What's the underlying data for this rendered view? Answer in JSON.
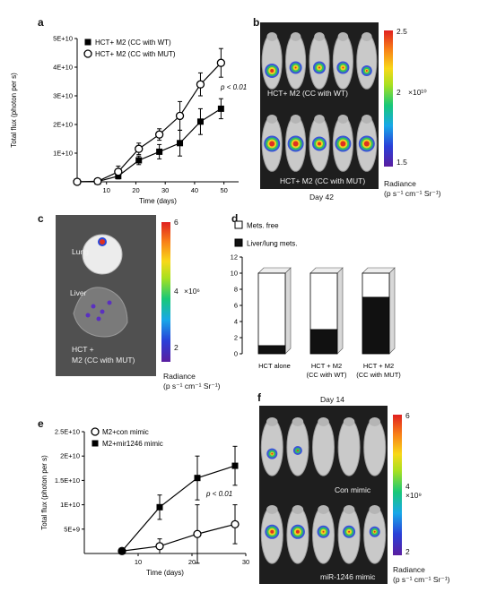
{
  "panels": {
    "a": {
      "letter": "a",
      "legend": [
        "HCT+ M2 (CC with WT)",
        "HCT+ M2 (CC with MUT)"
      ],
      "pvalue": "p < 0.01"
    },
    "b": {
      "letter": "b",
      "top_label": "HCT+ M2 (CC with WT)",
      "bottom_label": "HCT+ M2 (CC with MUT)",
      "day": "Day 42",
      "scale": {
        "max": "2.5",
        "mid": "2",
        "min": "1.5",
        "multiplier": "×10¹⁰",
        "title": "Radiance",
        "unit": "(p s⁻¹ cm⁻¹ Sr⁻¹)"
      }
    },
    "c": {
      "letter": "c",
      "lung": "Lung",
      "liver": "Liver",
      "sample": "HCT +",
      "sample2": "M2 (CC with MUT)",
      "scale": {
        "max": "6",
        "mid": "4",
        "min": "2",
        "multiplier": "×10⁶",
        "title": "Radiance",
        "unit": "(p s⁻¹ cm⁻¹ Sr⁻¹)"
      }
    },
    "d": {
      "letter": "d"
    },
    "e": {
      "letter": "e",
      "legend": [
        "M2+con mimic",
        "M2+mir1246 mimic"
      ],
      "pvalue": "p < 0.01"
    },
    "f": {
      "letter": "f",
      "day": "Day 14",
      "top_label": "Con mimic",
      "bottom_label": "miR-1246 mimic",
      "scale": {
        "max": "6",
        "mid": "4",
        "min": "2",
        "multiplier": "×10⁹",
        "title": "Radiance",
        "unit": "(p s⁻¹ cm⁻¹ Sr⁻¹)"
      }
    }
  },
  "chart_data": [
    {
      "id": "a",
      "type": "line",
      "ylabel": "Total flux (photon per s)",
      "xlabel": "Time (days)",
      "xlim": [
        0,
        55
      ],
      "ylim": [
        0,
        50000000000
      ],
      "x_ticks": [
        "10",
        "20",
        "30",
        "40",
        "50"
      ],
      "y_ticks": [
        "1E+10",
        "2E+10",
        "3E+10",
        "4E+10",
        "5E+10"
      ],
      "series": [
        {
          "name": "HCT+ M2 (CC with WT)",
          "marker": "filled-square",
          "x": [
            0,
            7,
            14,
            21,
            28,
            35,
            42,
            49
          ],
          "y": [
            0,
            100000000,
            2000000000,
            7500000000,
            10500000000,
            13500000000,
            21000000000,
            25500000000
          ],
          "err": [
            0,
            0,
            1000000000,
            1500000000,
            2500000000,
            4500000000,
            4500000000,
            3500000000
          ]
        },
        {
          "name": "HCT+ M2 (CC with MUT)",
          "marker": "open-circle",
          "x": [
            0,
            7,
            14,
            21,
            28,
            35,
            42,
            49
          ],
          "y": [
            0,
            200000000,
            3500000000,
            11500000000,
            16500000000,
            23000000000,
            34000000000,
            41500000000
          ],
          "err": [
            0,
            0,
            2000000000,
            2000000000,
            2000000000,
            5000000000,
            4000000000,
            5000000000
          ]
        }
      ]
    },
    {
      "id": "d",
      "type": "bar",
      "stacked": true,
      "categories": [
        "HCT alone",
        "HCT + M2\n(CC with WT)",
        "HCT + M2\n(CC with MUT)"
      ],
      "ylim": [
        0,
        12
      ],
      "y_ticks": [
        "0",
        "2",
        "4",
        "6",
        "8",
        "10",
        "12"
      ],
      "legend": [
        "Mets. free",
        "Liver/lung mets."
      ],
      "series": [
        {
          "name": "Liver/lung mets.",
          "color": "#111111",
          "values": [
            1,
            3,
            7
          ]
        },
        {
          "name": "Mets. free",
          "color": "#ffffff",
          "values": [
            9,
            7,
            3
          ]
        }
      ]
    },
    {
      "id": "e",
      "type": "line",
      "ylabel": "Total flux (photon per s)",
      "xlabel": "Time (days)",
      "xlim": [
        0,
        30
      ],
      "ylim": [
        0,
        25000000000
      ],
      "x_ticks": [
        "10",
        "20",
        "30"
      ],
      "y_ticks": [
        "5E+9",
        "1E+10",
        "1.5E+10",
        "2E+10",
        "2.5E+10"
      ],
      "series": [
        {
          "name": "M2+con mimic",
          "marker": "open-circle",
          "x": [
            7,
            14,
            21,
            28
          ],
          "y": [
            500000000,
            1500000000,
            4000000000,
            6000000000
          ],
          "err": [
            0,
            1500000000,
            6000000000,
            4000000000
          ]
        },
        {
          "name": "M2+mir1246 mimic",
          "marker": "filled-square",
          "x": [
            7,
            14,
            21,
            28
          ],
          "y": [
            500000000,
            9500000000,
            15500000000,
            18000000000
          ],
          "err": [
            0,
            2500000000,
            4500000000,
            4000000000
          ]
        }
      ]
    }
  ]
}
